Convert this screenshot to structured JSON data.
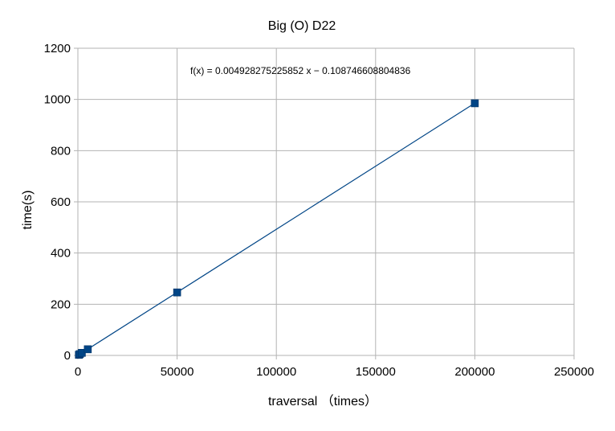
{
  "chart_data": {
    "type": "scatter",
    "title": "Big (O) D22",
    "xlabel": "traversal （times）",
    "ylabel": "time(s)",
    "xlim": [
      0,
      250000
    ],
    "ylim": [
      0,
      1200
    ],
    "x_ticks": [
      "0",
      "50000",
      "100000",
      "150000",
      "200000",
      "250000"
    ],
    "y_ticks": [
      "0",
      "200",
      "400",
      "600",
      "800",
      "1000",
      "1200"
    ],
    "grid": true,
    "legend": "none",
    "trendline": {
      "type": "linear",
      "slope": 0.004928275225852,
      "intercept": -0.108746608804836,
      "equation": "f(x) = 0.004928275225852 x − 0.108746608804836"
    },
    "series": [
      {
        "color": "#004586",
        "points": [
          {
            "x": 500,
            "y": 2.5
          },
          {
            "x": 1000,
            "y": 5
          },
          {
            "x": 2000,
            "y": 10
          },
          {
            "x": 5000,
            "y": 24
          },
          {
            "x": 50000,
            "y": 246
          },
          {
            "x": 200000,
            "y": 985
          }
        ]
      }
    ]
  }
}
